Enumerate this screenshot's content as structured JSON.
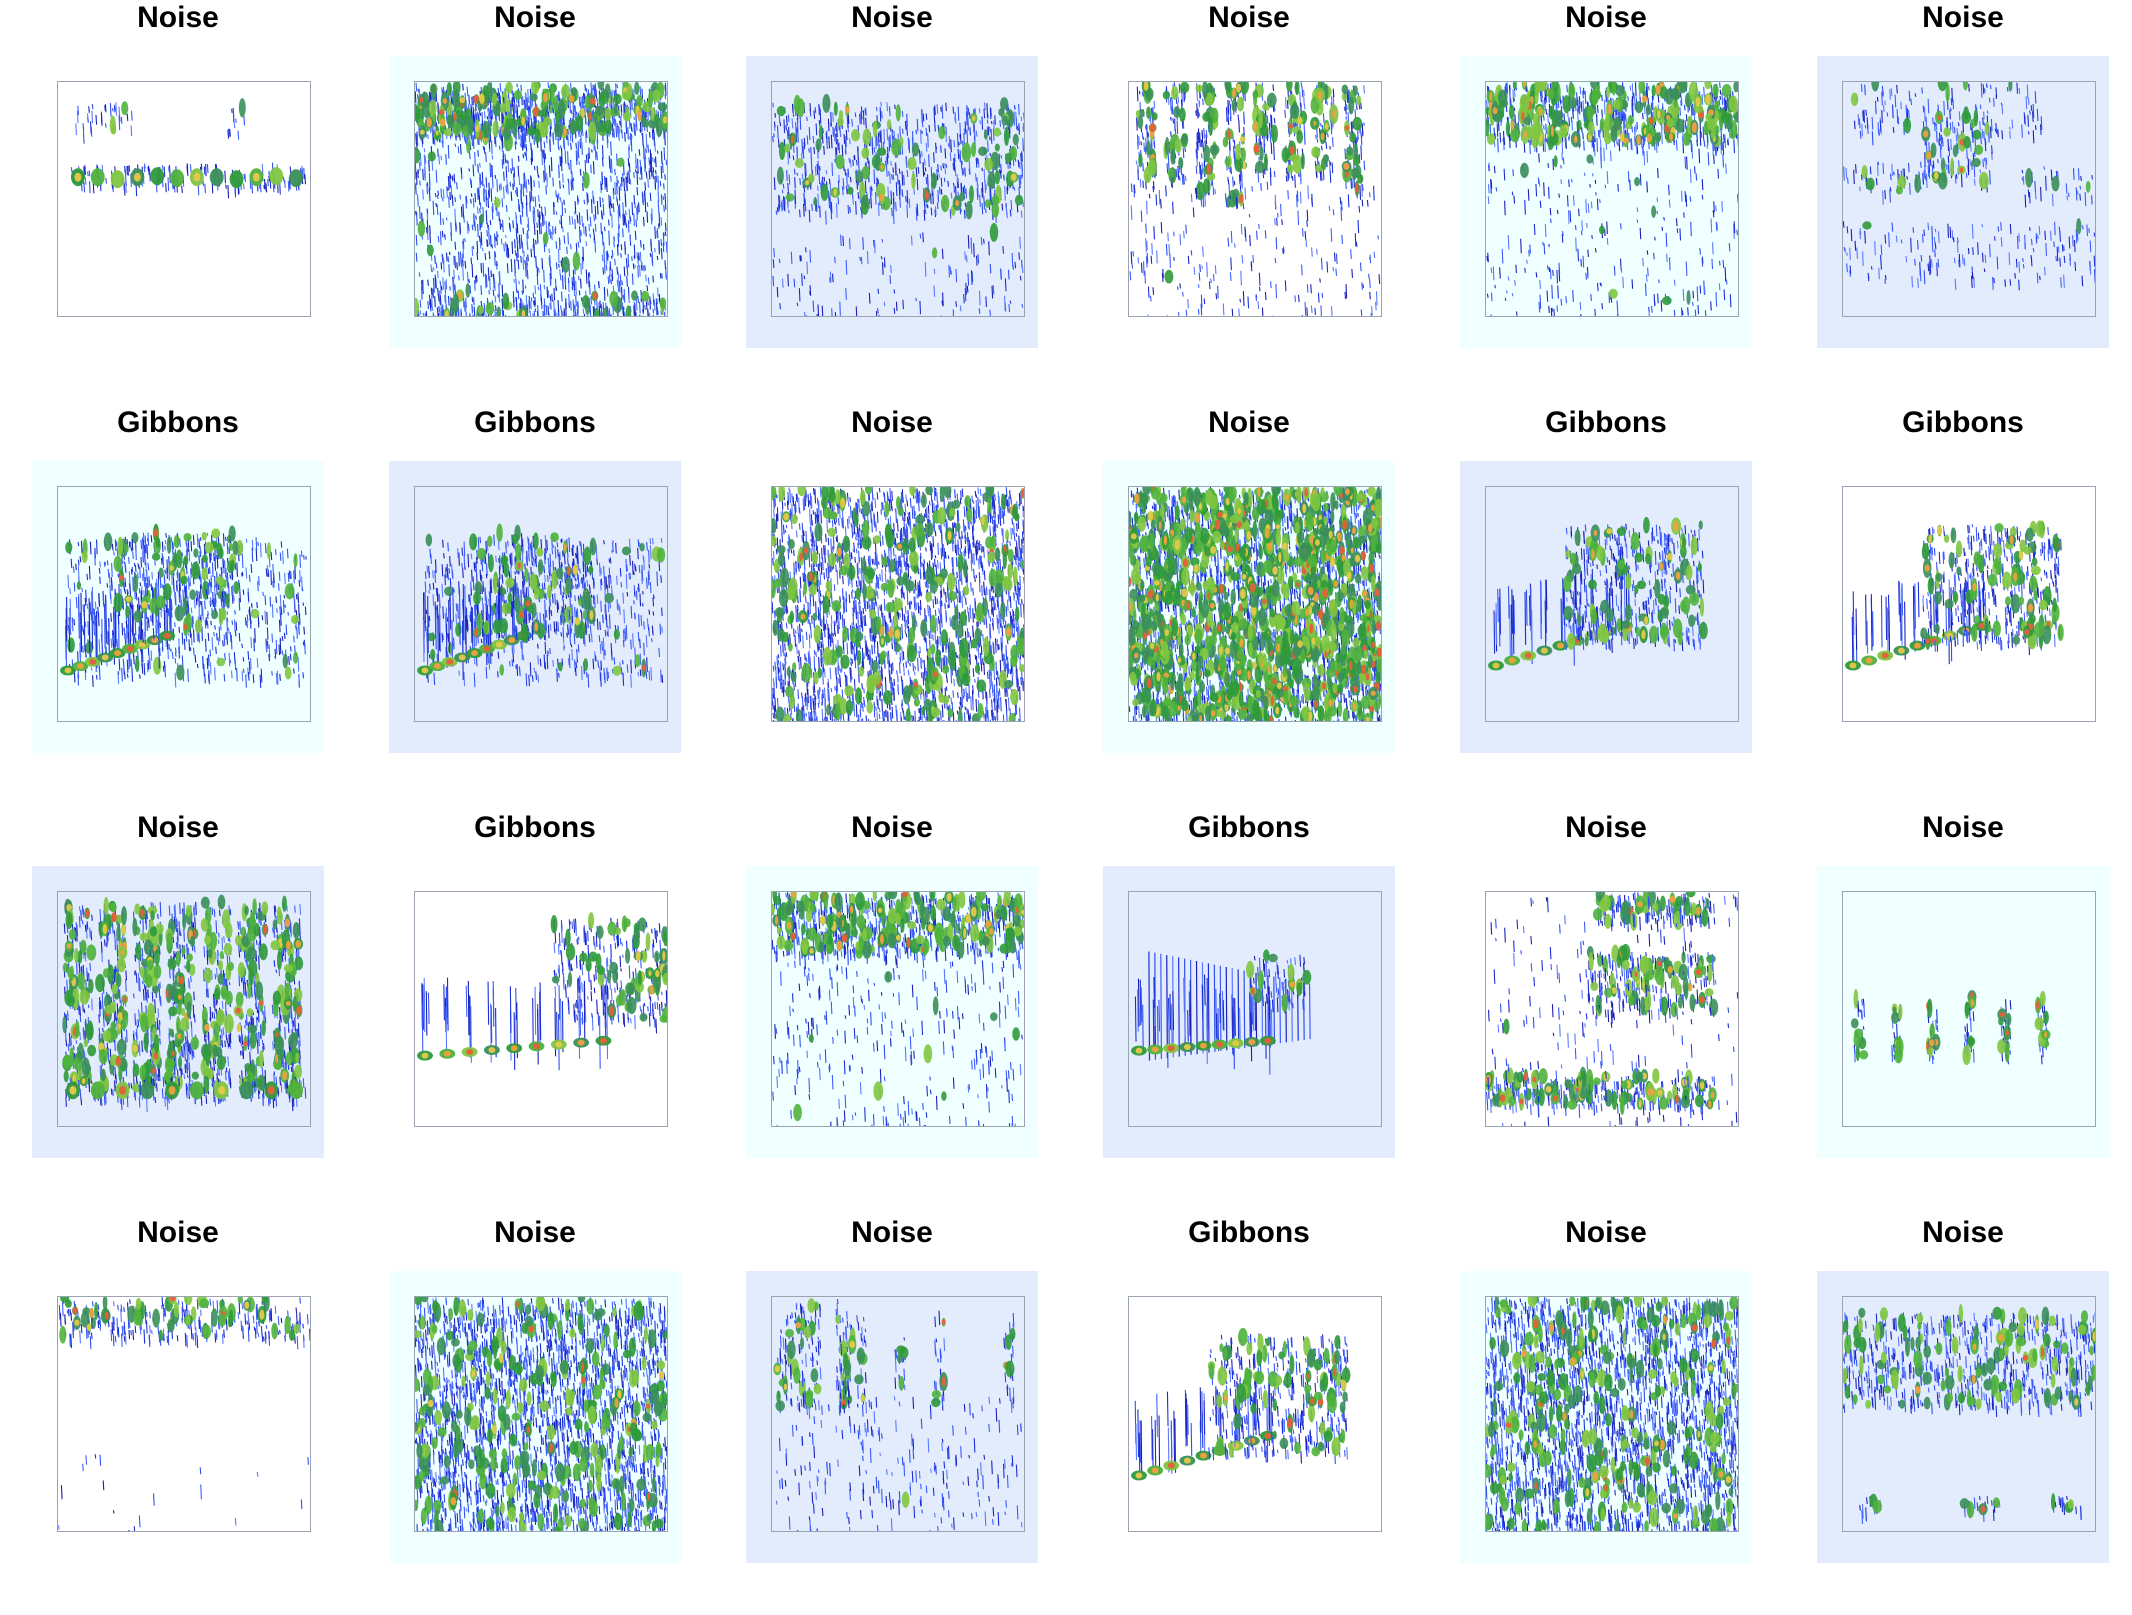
{
  "panels": [
    {
      "title": "Noise",
      "bg": "#ffffff",
      "pattern": "sparse-bands"
    },
    {
      "title": "Noise",
      "bg": "#f0ffff",
      "pattern": "dense-top-band"
    },
    {
      "title": "Noise",
      "bg": "#e2ecfd",
      "pattern": "mid-bursts"
    },
    {
      "title": "Noise",
      "bg": "#ffffff",
      "pattern": "top-drips"
    },
    {
      "title": "Noise",
      "bg": "#f0ffff",
      "pattern": "top-band"
    },
    {
      "title": "Noise",
      "bg": "#e2ecfd",
      "pattern": "scattered-calls"
    },
    {
      "title": "Gibbons",
      "bg": "#f0ffff",
      "pattern": "gibbon-rise"
    },
    {
      "title": "Gibbons",
      "bg": "#e2ecfd",
      "pattern": "gibbon-rise"
    },
    {
      "title": "Noise",
      "bg": "#ffffff",
      "pattern": "full-dense"
    },
    {
      "title": "Noise",
      "bg": "#f0ffff",
      "pattern": "full-dense-hot"
    },
    {
      "title": "Gibbons",
      "bg": "#e2ecfd",
      "pattern": "gibbon-cone"
    },
    {
      "title": "Gibbons",
      "bg": "#ffffff",
      "pattern": "gibbon-cone"
    },
    {
      "title": "Noise",
      "bg": "#e2ecfd",
      "pattern": "repeating-bells"
    },
    {
      "title": "Gibbons",
      "bg": "#ffffff",
      "pattern": "gibbon-low"
    },
    {
      "title": "Noise",
      "bg": "#f0ffff",
      "pattern": "top-band"
    },
    {
      "title": "Gibbons",
      "bg": "#e2ecfd",
      "pattern": "gibbon-fan"
    },
    {
      "title": "Noise",
      "bg": "#ffffff",
      "pattern": "diagonal-streaks"
    },
    {
      "title": "Noise",
      "bg": "#f0ffff",
      "pattern": "short-chirps"
    },
    {
      "title": "Noise",
      "bg": "#ffffff",
      "pattern": "top-sweep"
    },
    {
      "title": "Noise",
      "bg": "#f0ffff",
      "pattern": "full-dense"
    },
    {
      "title": "Noise",
      "bg": "#e2ecfd",
      "pattern": "sparse-clicks"
    },
    {
      "title": "Gibbons",
      "bg": "#ffffff",
      "pattern": "gibbon-cone"
    },
    {
      "title": "Noise",
      "bg": "#f0ffff",
      "pattern": "full-dense"
    },
    {
      "title": "Noise",
      "bg": "#e2ecfd",
      "pattern": "two-band-bursts"
    }
  ]
}
